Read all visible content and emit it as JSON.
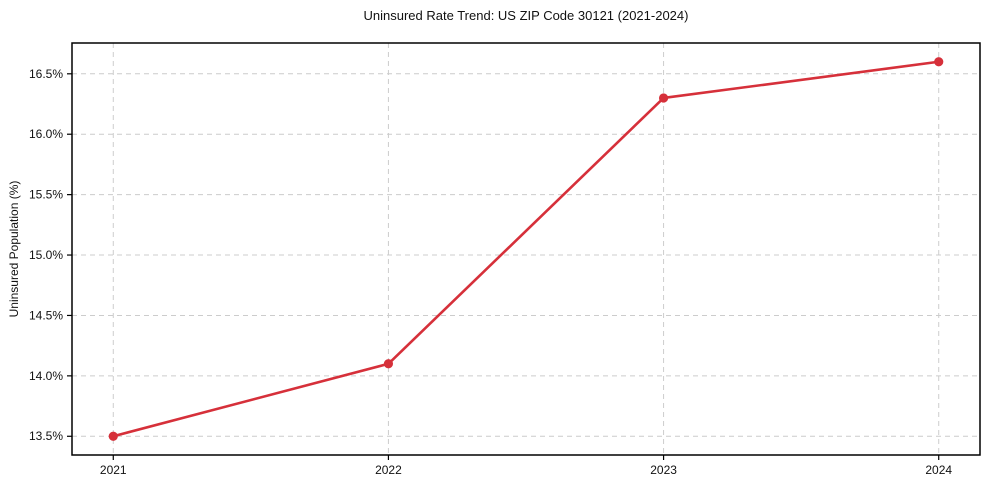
{
  "chart_data": {
    "type": "line",
    "title": "Uninsured Rate Trend: US ZIP Code 30121 (2021-2024)",
    "xlabel": "",
    "ylabel": "Uninsured Population (%)",
    "x": [
      2021,
      2022,
      2023,
      2024
    ],
    "x_tick_labels": [
      "2021",
      "2022",
      "2023",
      "2024"
    ],
    "series": [
      {
        "name": "Uninsured rate",
        "values": [
          13.5,
          14.1,
          16.3,
          16.6
        ]
      }
    ],
    "y_ticks": [
      13.5,
      14.0,
      14.5,
      15.0,
      15.5,
      16.0,
      16.5
    ],
    "y_tick_labels": [
      "13.5%",
      "14.0%",
      "14.5%",
      "15.0%",
      "15.5%",
      "16.0%",
      "16.5%"
    ],
    "xlim": [
      2020.85,
      2024.15
    ],
    "ylim": [
      13.345,
      16.755
    ],
    "grid": true,
    "grid_style": "dashed",
    "legend": "none",
    "marker": "circle",
    "line_color": "#d6303a",
    "grid_color": "#cccccc",
    "axis_color": "#000000",
    "text_color": "#111111"
  }
}
